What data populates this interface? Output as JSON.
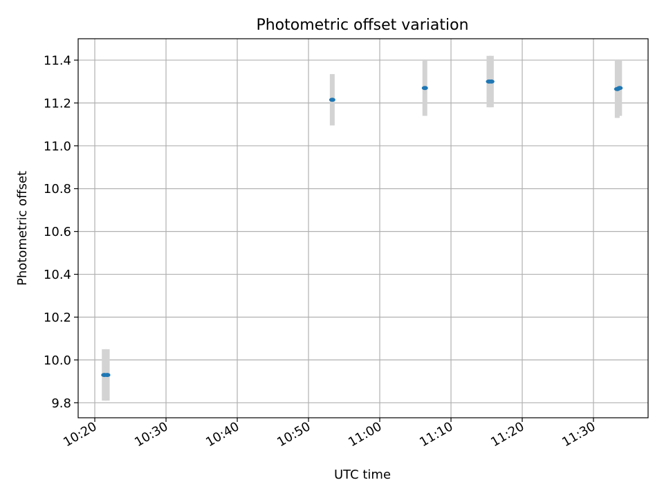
{
  "chart_data": {
    "type": "scatter",
    "title": "Photometric offset variation",
    "xlabel": "UTC time",
    "ylabel": "Photometric offset",
    "x_type": "time",
    "xlim": [
      "10:17:40",
      "11:37:40"
    ],
    "ylim": [
      9.73,
      11.5
    ],
    "x_ticks": [
      "10:20",
      "10:30",
      "10:40",
      "10:50",
      "11:00",
      "11:10",
      "11:20",
      "11:30"
    ],
    "y_ticks": [
      9.8,
      10.0,
      10.2,
      10.4,
      10.6,
      10.8,
      11.0,
      11.2,
      11.4
    ],
    "grid": true,
    "points": [
      {
        "x": "10:21:20",
        "y": 9.93,
        "err": 0.12
      },
      {
        "x": "10:21:45",
        "y": 9.93,
        "err": 0.12
      },
      {
        "x": "10:53:20",
        "y": 11.215,
        "err": 0.12
      },
      {
        "x": "11:06:20",
        "y": 11.27,
        "err": 0.13
      },
      {
        "x": "11:15:20",
        "y": 11.3,
        "err": 0.12
      },
      {
        "x": "11:15:40",
        "y": 11.3,
        "err": 0.12
      },
      {
        "x": "11:33:20",
        "y": 11.265,
        "err": 0.135
      },
      {
        "x": "11:33:40",
        "y": 11.27,
        "err": 0.13
      }
    ],
    "colors": {
      "marker": "#1f77b4",
      "errorbar": "#d3d3d3",
      "grid": "#b0b0b0",
      "axes": "#000000"
    }
  }
}
